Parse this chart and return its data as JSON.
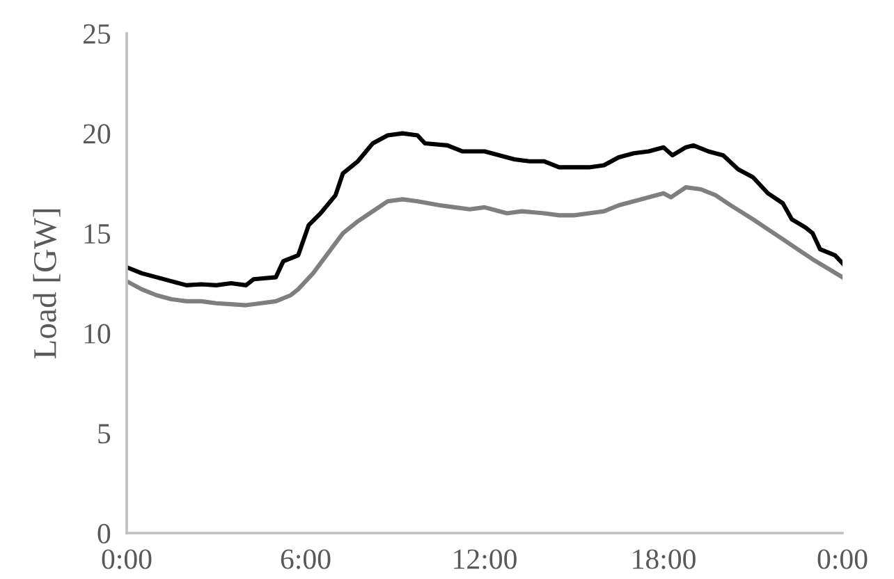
{
  "chart_data": {
    "type": "line",
    "ylabel": "Load [GW]",
    "xlim": [
      0,
      24
    ],
    "ylim": [
      0,
      25
    ],
    "xticks": [
      {
        "value": 0,
        "label": "0:00"
      },
      {
        "value": 6,
        "label": "6:00"
      },
      {
        "value": 12,
        "label": "12:00"
      },
      {
        "value": 18,
        "label": "18:00"
      },
      {
        "value": 24,
        "label": "0:00"
      }
    ],
    "yticks": [
      0,
      5,
      10,
      15,
      20,
      25
    ],
    "grid": false,
    "marker": "none",
    "line_style": "solid",
    "series": [
      {
        "color": "#000000",
        "x": [
          0,
          0.5,
          1,
          1.5,
          2,
          2.5,
          3,
          3.5,
          4,
          4.25,
          5,
          5.25,
          5.75,
          6.1,
          6.5,
          7,
          7.25,
          7.75,
          8.25,
          8.75,
          9.25,
          9.75,
          10,
          10.75,
          11.25,
          12,
          12.5,
          13,
          13.5,
          14,
          14.5,
          15,
          15.5,
          16,
          16.5,
          17,
          17.5,
          18,
          18.3,
          18.75,
          19,
          19.5,
          20,
          20.5,
          21,
          21.5,
          22,
          22.3,
          22.75,
          23,
          23.25,
          23.75,
          24
        ],
        "values": [
          13.3,
          13.0,
          12.8,
          12.6,
          12.4,
          12.45,
          12.4,
          12.5,
          12.4,
          12.7,
          12.8,
          13.6,
          13.9,
          15.4,
          16.0,
          16.9,
          18.0,
          18.6,
          19.5,
          19.9,
          20.0,
          19.9,
          19.5,
          19.4,
          19.1,
          19.1,
          18.9,
          18.7,
          18.6,
          18.6,
          18.3,
          18.3,
          18.3,
          18.4,
          18.8,
          19.0,
          19.1,
          19.3,
          18.9,
          19.3,
          19.4,
          19.1,
          18.9,
          18.2,
          17.8,
          17.0,
          16.5,
          15.7,
          15.3,
          15.0,
          14.2,
          13.9,
          13.5
        ]
      },
      {
        "color": "#7f7f7f",
        "x": [
          0,
          0.5,
          1,
          1.5,
          2,
          2.5,
          3,
          3.5,
          4,
          4.5,
          5,
          5.5,
          5.75,
          6.25,
          6.75,
          7.25,
          7.75,
          8.25,
          8.75,
          9.25,
          9.75,
          10.5,
          11,
          11.5,
          12,
          12.25,
          12.75,
          13.25,
          14,
          14.5,
          15,
          15.5,
          16,
          16.5,
          17,
          17.5,
          18,
          18.25,
          18.75,
          19.25,
          19.75,
          20.25,
          21,
          21.5,
          22,
          22.5,
          23,
          24
        ],
        "values": [
          12.6,
          12.2,
          11.9,
          11.7,
          11.6,
          11.6,
          11.5,
          11.45,
          11.4,
          11.5,
          11.6,
          11.9,
          12.2,
          13.0,
          14.0,
          15.0,
          15.6,
          16.1,
          16.6,
          16.7,
          16.6,
          16.4,
          16.3,
          16.2,
          16.3,
          16.2,
          16.0,
          16.1,
          16.0,
          15.9,
          15.9,
          16.0,
          16.1,
          16.4,
          16.6,
          16.8,
          17.0,
          16.8,
          17.3,
          17.2,
          16.9,
          16.4,
          15.7,
          15.2,
          14.7,
          14.2,
          13.7,
          12.8
        ]
      }
    ]
  }
}
